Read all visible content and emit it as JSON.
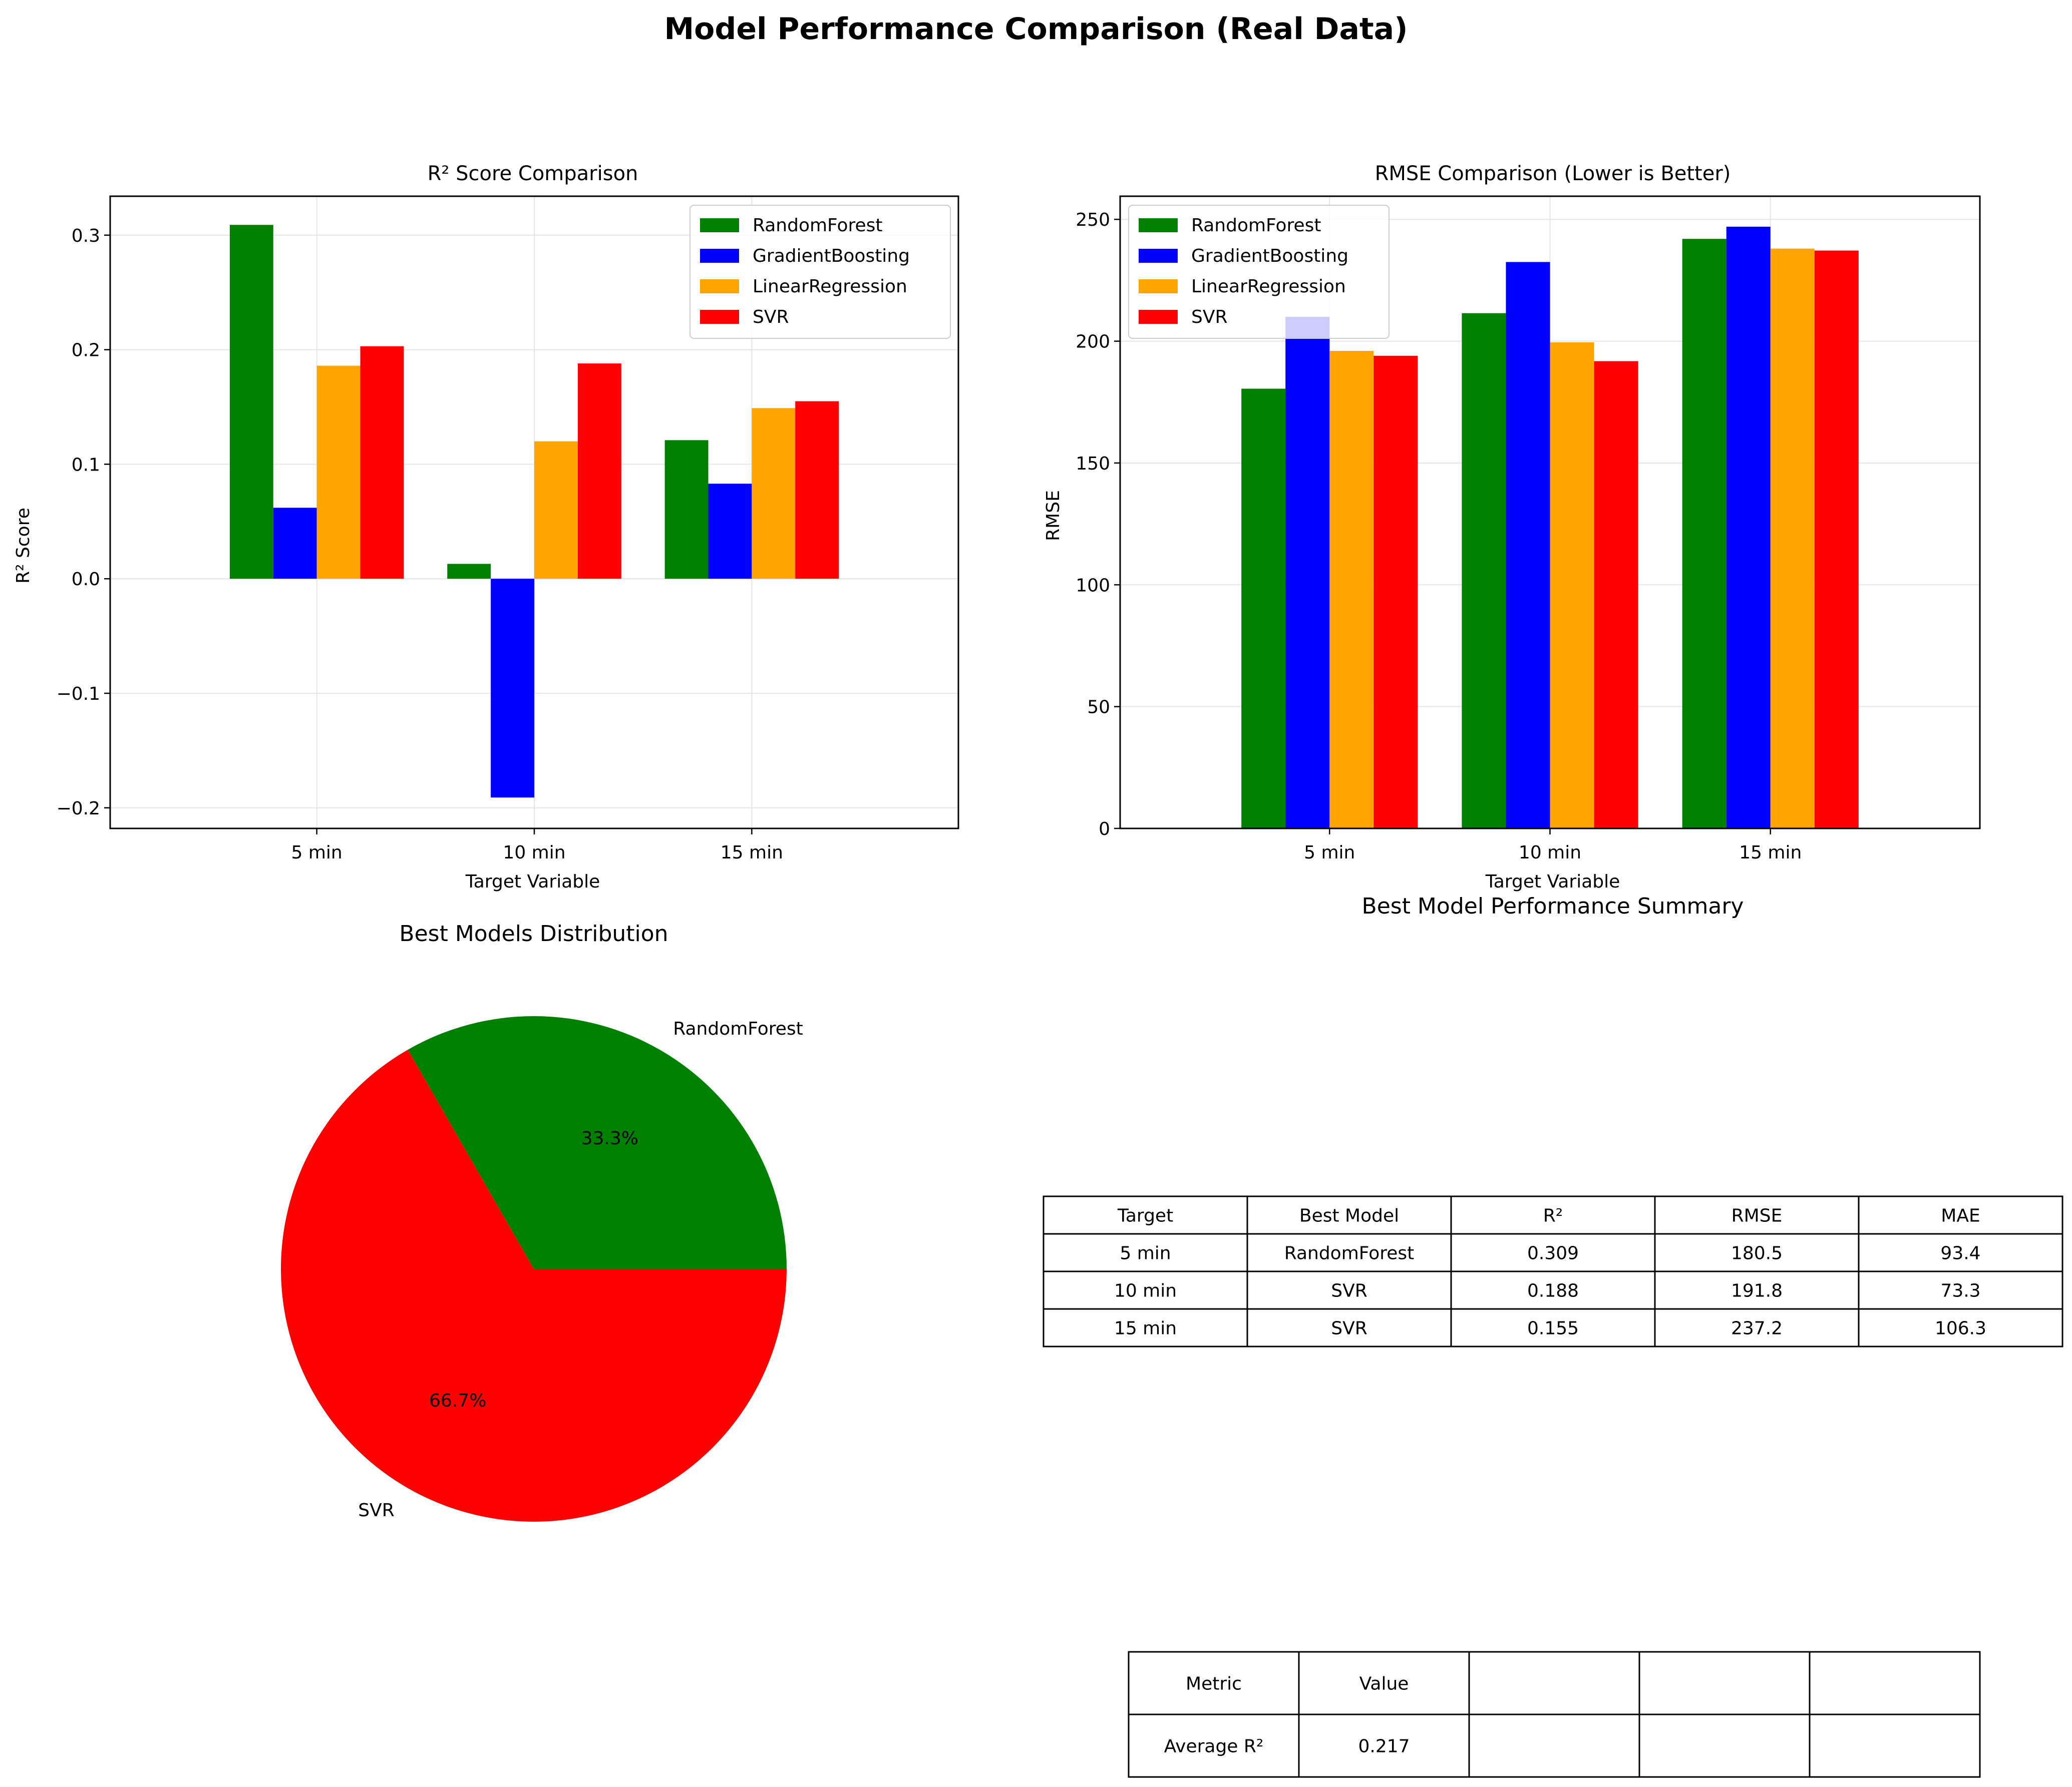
{
  "figure_title": "Model Performance Comparison (Real Data)",
  "colors": {
    "RandomForest": "#008000",
    "GradientBoosting": "#0000ff",
    "LinearRegression": "#ffa500",
    "SVR": "#ff0000"
  },
  "chart_data": [
    {
      "type": "bar",
      "title": "R² Score Comparison",
      "xlabel": "Target Variable",
      "ylabel": "R² Score",
      "categories": [
        "5 min",
        "10 min",
        "15 min"
      ],
      "ylim": [
        -0.218,
        0.334
      ],
      "yticks": [
        -0.2,
        -0.1,
        0.0,
        0.1,
        0.2,
        0.3
      ],
      "ytick_labels": [
        "−0.2",
        "−0.1",
        "0.0",
        "0.1",
        "0.2",
        "0.3"
      ],
      "grid": true,
      "legend_position": "top-right",
      "series": [
        {
          "name": "RandomForest",
          "values": [
            0.309,
            0.013,
            0.121
          ]
        },
        {
          "name": "GradientBoosting",
          "values": [
            0.062,
            -0.191,
            0.083
          ]
        },
        {
          "name": "LinearRegression",
          "values": [
            0.186,
            0.12,
            0.149
          ]
        },
        {
          "name": "SVR",
          "values": [
            0.203,
            0.188,
            0.155
          ]
        }
      ]
    },
    {
      "type": "bar",
      "title": "RMSE Comparison (Lower is Better)",
      "xlabel": "Target Variable",
      "ylabel": "RMSE",
      "categories": [
        "5 min",
        "10 min",
        "15 min"
      ],
      "ylim": [
        0,
        259.5
      ],
      "yticks": [
        0,
        50,
        100,
        150,
        200,
        250
      ],
      "ytick_labels": [
        "0",
        "50",
        "100",
        "150",
        "200",
        "250"
      ],
      "grid": true,
      "legend_position": "top-left",
      "series": [
        {
          "name": "RandomForest",
          "values": [
            180.5,
            211.5,
            242.0
          ]
        },
        {
          "name": "GradientBoosting",
          "values": [
            210.0,
            232.5,
            247.0
          ]
        },
        {
          "name": "LinearRegression",
          "values": [
            196.0,
            199.5,
            238.0
          ]
        },
        {
          "name": "SVR",
          "values": [
            194.0,
            191.8,
            237.2
          ]
        }
      ]
    },
    {
      "type": "pie",
      "title": "Best Models Distribution",
      "labels": [
        "RandomForest",
        "SVR"
      ],
      "values": [
        33.3,
        66.7
      ],
      "pct_labels": [
        "33.3%",
        "66.7%"
      ],
      "start_angle": 0
    },
    {
      "type": "table",
      "title": "Best Model Performance Summary",
      "columns": [
        "Target",
        "Best Model",
        "R²",
        "RMSE",
        "MAE"
      ],
      "rows": [
        [
          "5 min",
          "RandomForest",
          "0.309",
          "180.5",
          "93.4"
        ],
        [
          "10 min",
          "SVR",
          "0.188",
          "191.8",
          "73.3"
        ],
        [
          "15 min",
          "SVR",
          "0.155",
          "237.2",
          "106.3"
        ]
      ]
    },
    {
      "type": "table",
      "columns": [
        "Metric",
        "Value",
        "",
        "",
        ""
      ],
      "rows": [
        [
          "Average R²",
          "0.217",
          "",
          "",
          ""
        ]
      ]
    }
  ]
}
